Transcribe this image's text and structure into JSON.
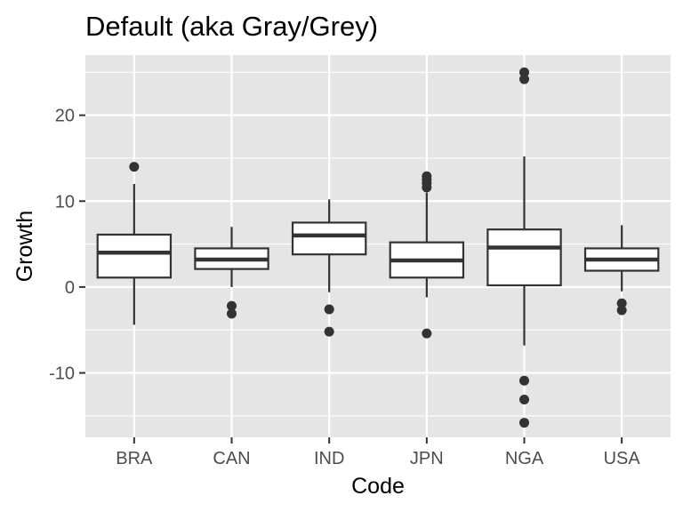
{
  "chart_data": {
    "type": "boxplot",
    "title": "Default (aka Gray/Grey)",
    "xlabel": "Code",
    "ylabel": "Growth",
    "ylim": [
      -17.5,
      27.0
    ],
    "yticks": [
      -10,
      0,
      10,
      20
    ],
    "grid": true,
    "colors": {
      "panel_background": "#e5e5e5",
      "grid_line": "#ffffff",
      "box_fill": "#ffffff",
      "box_line": "#333333",
      "tick_text": "#4d4d4d",
      "tick_mark": "#333333"
    },
    "categories": [
      "BRA",
      "CAN",
      "IND",
      "JPN",
      "NGA",
      "USA"
    ],
    "boxes": [
      {
        "category": "BRA",
        "q1": 1.1,
        "median": 4.0,
        "q3": 6.1,
        "whisker_low": -4.4,
        "whisker_high": 12.0,
        "outliers": [
          14.0
        ]
      },
      {
        "category": "CAN",
        "q1": 2.1,
        "median": 3.2,
        "q3": 4.5,
        "whisker_low": 0.0,
        "whisker_high": 7.0,
        "outliers": [
          -2.2,
          -3.1
        ]
      },
      {
        "category": "IND",
        "q1": 3.8,
        "median": 6.0,
        "q3": 7.5,
        "whisker_low": -0.6,
        "whisker_high": 10.2,
        "outliers": [
          -2.6,
          -5.2
        ]
      },
      {
        "category": "JPN",
        "q1": 1.1,
        "median": 3.1,
        "q3": 5.2,
        "whisker_low": -1.2,
        "whisker_high": 11.0,
        "outliers": [
          11.6,
          12.1,
          12.5,
          12.9,
          -5.4
        ]
      },
      {
        "category": "NGA",
        "q1": 0.2,
        "median": 4.6,
        "q3": 6.7,
        "whisker_low": -6.8,
        "whisker_high": 15.2,
        "outliers": [
          24.2,
          25.0,
          -10.9,
          -13.1,
          -15.8
        ]
      },
      {
        "category": "USA",
        "q1": 1.9,
        "median": 3.2,
        "q3": 4.5,
        "whisker_low": -0.5,
        "whisker_high": 7.2,
        "outliers": [
          -1.9,
          -2.7
        ]
      }
    ]
  }
}
